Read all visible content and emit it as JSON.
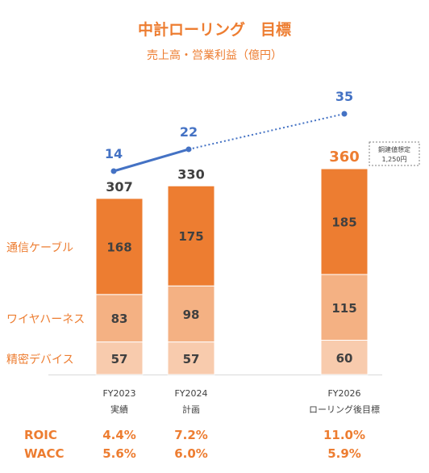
{
  "title": "中計ローリング　目標",
  "subtitle": "売上高・営業利益（億円）",
  "colors": {
    "accent": "#ED7D31",
    "line": "#4472C4",
    "series": [
      "#F8CBAD",
      "#F4B183",
      "#ED7D31"
    ],
    "text": "#404040"
  },
  "chart_data": {
    "type": "bar",
    "categories": [
      {
        "year": "FY2023",
        "label": "実績"
      },
      {
        "year": "FY2024",
        "label": "計画"
      },
      {
        "year": "FY2026",
        "label": "ローリング後目標"
      }
    ],
    "series": [
      {
        "name": "精密デバイス",
        "values": [
          57,
          57,
          60
        ]
      },
      {
        "name": "ワイヤハーネス",
        "values": [
          83,
          98,
          115
        ]
      },
      {
        "name": "通信ケーブル",
        "values": [
          168,
          175,
          185
        ]
      }
    ],
    "totals": [
      307,
      330,
      360
    ],
    "line_series": {
      "values": [
        14,
        22,
        35
      ],
      "style": [
        "solid",
        "dotted"
      ]
    },
    "ylim": [
      0,
      400
    ],
    "annotation": [
      "銅建値想定",
      "1,250円"
    ],
    "metrics": [
      {
        "name": "ROIC",
        "values": [
          "4.4%",
          "7.2%",
          "11.0%"
        ]
      },
      {
        "name": "WACC",
        "values": [
          "5.6%",
          "6.0%",
          "5.9%"
        ]
      }
    ]
  }
}
